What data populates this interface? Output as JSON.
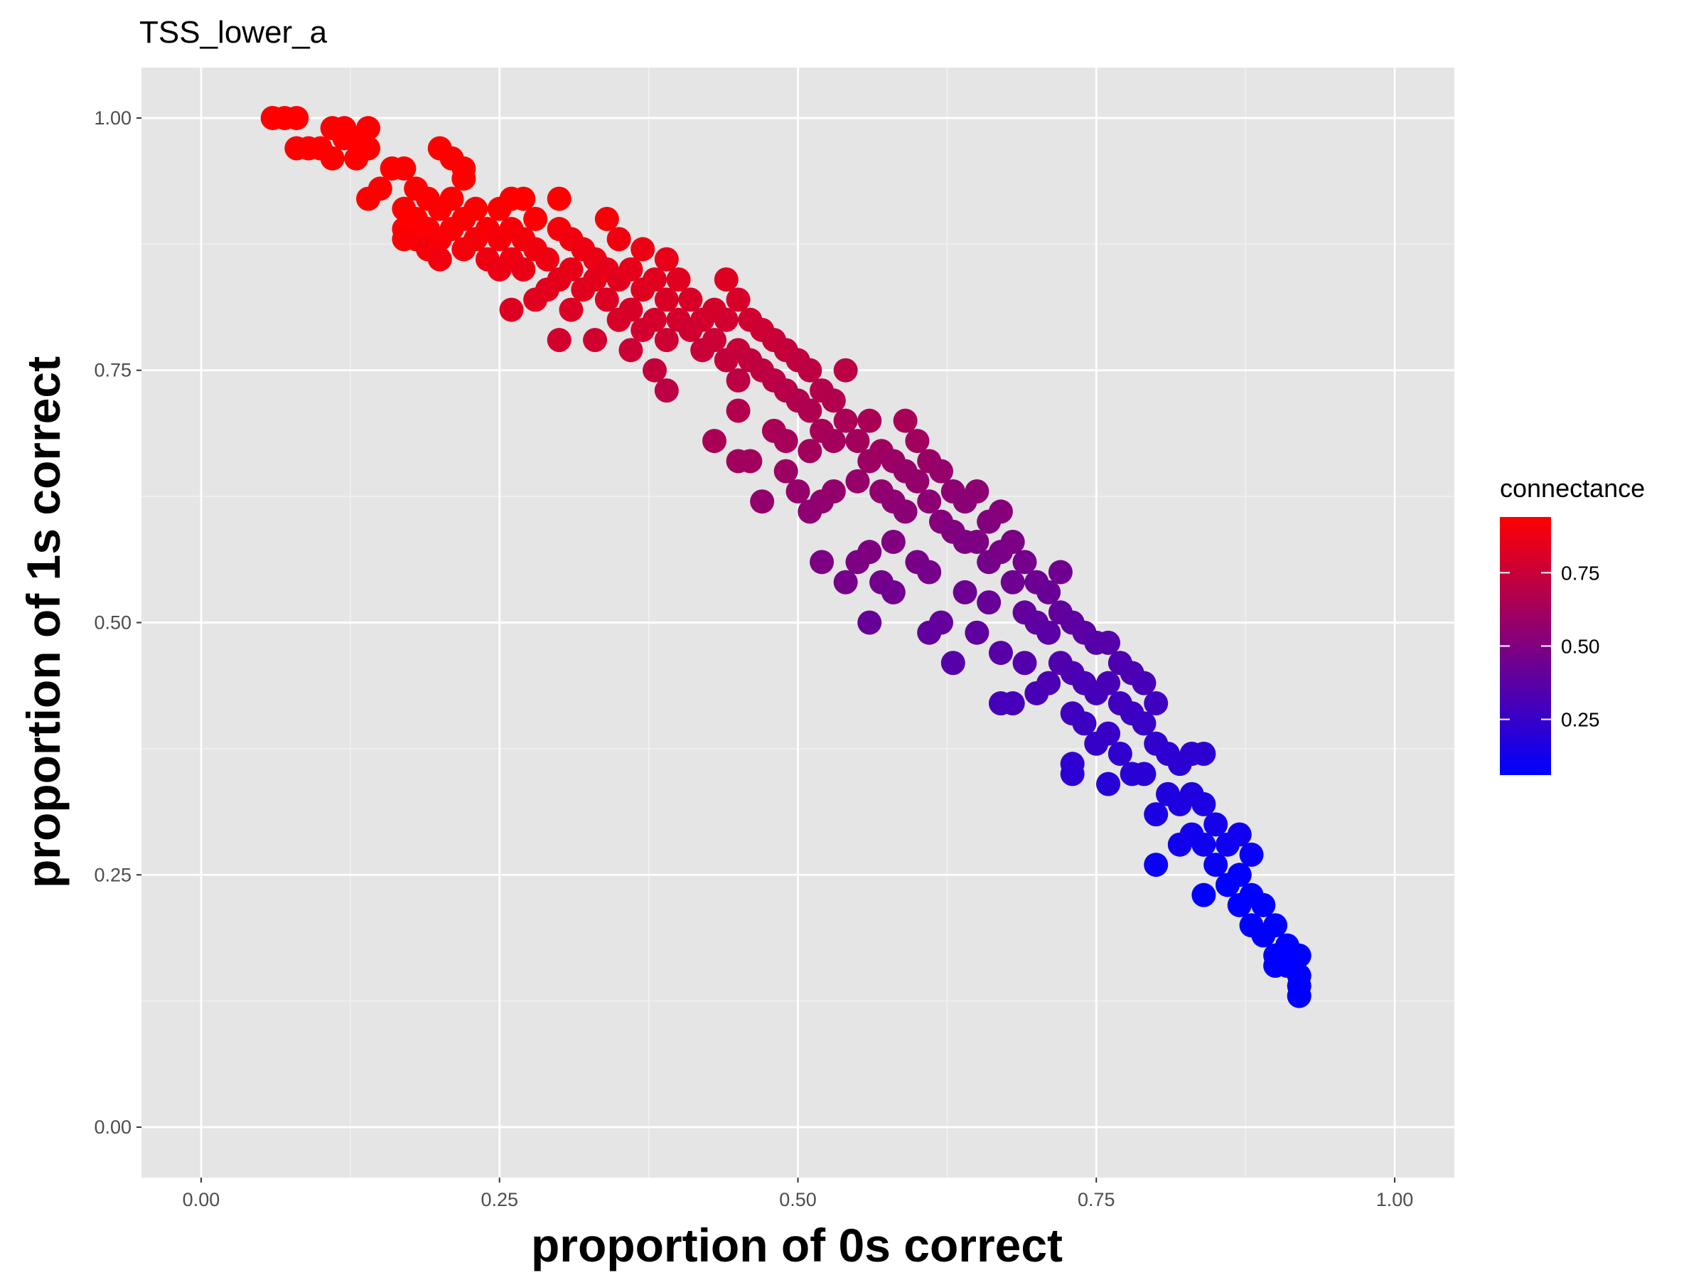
{
  "chart_data": {
    "type": "scatter",
    "title": "TSS_lower_a",
    "xlabel": "proportion of 0s correct",
    "ylabel": "proportion of 1s correct",
    "xlim": [
      -0.05,
      1.05
    ],
    "ylim": [
      -0.05,
      1.05
    ],
    "x_ticks": [
      "0.00",
      "0.25",
      "0.50",
      "0.75",
      "1.00"
    ],
    "y_ticks": [
      "0.00",
      "0.25",
      "0.50",
      "0.75",
      "1.00"
    ],
    "grid": true,
    "background": "#e5e5e5",
    "legend": {
      "title": "connectance",
      "position": "right",
      "low_color": "#0000ff",
      "high_color": "#ff0000",
      "range": [
        0.06,
        0.94
      ],
      "breaks": [
        "0.25",
        "0.50",
        "0.75"
      ]
    },
    "series": [
      {
        "points": [
          [
            0.06,
            1.0
          ],
          [
            0.07,
            1.0
          ],
          [
            0.08,
            1.0
          ],
          [
            0.08,
            0.97
          ],
          [
            0.09,
            0.97
          ],
          [
            0.1,
            0.97
          ],
          [
            0.11,
            0.99
          ],
          [
            0.11,
            0.96
          ],
          [
            0.12,
            0.99
          ],
          [
            0.12,
            0.98
          ],
          [
            0.13,
            0.98
          ],
          [
            0.13,
            0.96
          ],
          [
            0.14,
            0.99
          ],
          [
            0.14,
            0.97
          ],
          [
            0.14,
            0.92
          ],
          [
            0.15,
            0.93
          ],
          [
            0.16,
            0.95
          ],
          [
            0.17,
            0.95
          ],
          [
            0.17,
            0.91
          ],
          [
            0.17,
            0.89
          ],
          [
            0.17,
            0.88
          ],
          [
            0.18,
            0.93
          ],
          [
            0.18,
            0.9
          ],
          [
            0.18,
            0.88
          ],
          [
            0.19,
            0.92
          ],
          [
            0.19,
            0.89
          ],
          [
            0.19,
            0.87
          ],
          [
            0.2,
            0.97
          ],
          [
            0.2,
            0.91
          ],
          [
            0.2,
            0.88
          ],
          [
            0.2,
            0.86
          ],
          [
            0.21,
            0.96
          ],
          [
            0.21,
            0.92
          ],
          [
            0.21,
            0.89
          ],
          [
            0.22,
            0.95
          ],
          [
            0.22,
            0.94
          ],
          [
            0.22,
            0.9
          ],
          [
            0.22,
            0.87
          ],
          [
            0.23,
            0.91
          ],
          [
            0.23,
            0.88
          ],
          [
            0.24,
            0.89
          ],
          [
            0.24,
            0.86
          ],
          [
            0.25,
            0.91
          ],
          [
            0.25,
            0.88
          ],
          [
            0.25,
            0.85
          ],
          [
            0.26,
            0.92
          ],
          [
            0.26,
            0.89
          ],
          [
            0.26,
            0.86
          ],
          [
            0.26,
            0.81
          ],
          [
            0.27,
            0.92
          ],
          [
            0.27,
            0.88
          ],
          [
            0.27,
            0.85
          ],
          [
            0.28,
            0.9
          ],
          [
            0.28,
            0.87
          ],
          [
            0.28,
            0.82
          ],
          [
            0.29,
            0.86
          ],
          [
            0.29,
            0.83
          ],
          [
            0.3,
            0.92
          ],
          [
            0.3,
            0.89
          ],
          [
            0.3,
            0.84
          ],
          [
            0.3,
            0.78
          ],
          [
            0.31,
            0.88
          ],
          [
            0.31,
            0.85
          ],
          [
            0.31,
            0.81
          ],
          [
            0.32,
            0.87
          ],
          [
            0.32,
            0.83
          ],
          [
            0.33,
            0.86
          ],
          [
            0.33,
            0.84
          ],
          [
            0.33,
            0.78
          ],
          [
            0.34,
            0.9
          ],
          [
            0.34,
            0.85
          ],
          [
            0.34,
            0.82
          ],
          [
            0.35,
            0.88
          ],
          [
            0.35,
            0.84
          ],
          [
            0.35,
            0.8
          ],
          [
            0.36,
            0.85
          ],
          [
            0.36,
            0.81
          ],
          [
            0.36,
            0.77
          ],
          [
            0.37,
            0.87
          ],
          [
            0.37,
            0.83
          ],
          [
            0.37,
            0.79
          ],
          [
            0.38,
            0.84
          ],
          [
            0.38,
            0.8
          ],
          [
            0.38,
            0.75
          ],
          [
            0.39,
            0.86
          ],
          [
            0.39,
            0.82
          ],
          [
            0.39,
            0.78
          ],
          [
            0.39,
            0.73
          ],
          [
            0.4,
            0.84
          ],
          [
            0.4,
            0.8
          ],
          [
            0.41,
            0.82
          ],
          [
            0.41,
            0.79
          ],
          [
            0.42,
            0.8
          ],
          [
            0.42,
            0.77
          ],
          [
            0.43,
            0.81
          ],
          [
            0.43,
            0.78
          ],
          [
            0.43,
            0.68
          ],
          [
            0.44,
            0.84
          ],
          [
            0.44,
            0.8
          ],
          [
            0.44,
            0.76
          ],
          [
            0.45,
            0.82
          ],
          [
            0.45,
            0.77
          ],
          [
            0.45,
            0.74
          ],
          [
            0.45,
            0.71
          ],
          [
            0.45,
            0.66
          ],
          [
            0.46,
            0.8
          ],
          [
            0.46,
            0.76
          ],
          [
            0.46,
            0.66
          ],
          [
            0.47,
            0.79
          ],
          [
            0.47,
            0.75
          ],
          [
            0.47,
            0.62
          ],
          [
            0.48,
            0.78
          ],
          [
            0.48,
            0.74
          ],
          [
            0.48,
            0.69
          ],
          [
            0.49,
            0.77
          ],
          [
            0.49,
            0.73
          ],
          [
            0.49,
            0.68
          ],
          [
            0.49,
            0.65
          ],
          [
            0.5,
            0.76
          ],
          [
            0.5,
            0.72
          ],
          [
            0.5,
            0.63
          ],
          [
            0.51,
            0.75
          ],
          [
            0.51,
            0.71
          ],
          [
            0.51,
            0.67
          ],
          [
            0.51,
            0.61
          ],
          [
            0.52,
            0.73
          ],
          [
            0.52,
            0.69
          ],
          [
            0.52,
            0.62
          ],
          [
            0.52,
            0.56
          ],
          [
            0.53,
            0.72
          ],
          [
            0.53,
            0.68
          ],
          [
            0.53,
            0.63
          ],
          [
            0.54,
            0.75
          ],
          [
            0.54,
            0.7
          ],
          [
            0.54,
            0.54
          ],
          [
            0.55,
            0.68
          ],
          [
            0.55,
            0.64
          ],
          [
            0.55,
            0.56
          ],
          [
            0.56,
            0.7
          ],
          [
            0.56,
            0.66
          ],
          [
            0.56,
            0.57
          ],
          [
            0.56,
            0.5
          ],
          [
            0.57,
            0.67
          ],
          [
            0.57,
            0.63
          ],
          [
            0.57,
            0.54
          ],
          [
            0.58,
            0.66
          ],
          [
            0.58,
            0.62
          ],
          [
            0.58,
            0.58
          ],
          [
            0.58,
            0.53
          ],
          [
            0.59,
            0.7
          ],
          [
            0.59,
            0.65
          ],
          [
            0.59,
            0.61
          ],
          [
            0.6,
            0.68
          ],
          [
            0.6,
            0.64
          ],
          [
            0.6,
            0.56
          ],
          [
            0.61,
            0.66
          ],
          [
            0.61,
            0.62
          ],
          [
            0.61,
            0.55
          ],
          [
            0.61,
            0.49
          ],
          [
            0.62,
            0.65
          ],
          [
            0.62,
            0.6
          ],
          [
            0.62,
            0.5
          ],
          [
            0.63,
            0.63
          ],
          [
            0.63,
            0.59
          ],
          [
            0.63,
            0.46
          ],
          [
            0.64,
            0.62
          ],
          [
            0.64,
            0.58
          ],
          [
            0.64,
            0.53
          ],
          [
            0.65,
            0.63
          ],
          [
            0.65,
            0.58
          ],
          [
            0.65,
            0.49
          ],
          [
            0.66,
            0.6
          ],
          [
            0.66,
            0.56
          ],
          [
            0.66,
            0.52
          ],
          [
            0.67,
            0.61
          ],
          [
            0.67,
            0.57
          ],
          [
            0.67,
            0.47
          ],
          [
            0.67,
            0.42
          ],
          [
            0.68,
            0.58
          ],
          [
            0.68,
            0.54
          ],
          [
            0.68,
            0.42
          ],
          [
            0.69,
            0.56
          ],
          [
            0.69,
            0.51
          ],
          [
            0.69,
            0.46
          ],
          [
            0.7,
            0.54
          ],
          [
            0.7,
            0.5
          ],
          [
            0.7,
            0.43
          ],
          [
            0.71,
            0.53
          ],
          [
            0.71,
            0.49
          ],
          [
            0.71,
            0.44
          ],
          [
            0.72,
            0.55
          ],
          [
            0.72,
            0.51
          ],
          [
            0.72,
            0.46
          ],
          [
            0.73,
            0.5
          ],
          [
            0.73,
            0.45
          ],
          [
            0.73,
            0.41
          ],
          [
            0.73,
            0.36
          ],
          [
            0.73,
            0.35
          ],
          [
            0.74,
            0.49
          ],
          [
            0.74,
            0.44
          ],
          [
            0.74,
            0.4
          ],
          [
            0.75,
            0.48
          ],
          [
            0.75,
            0.43
          ],
          [
            0.75,
            0.38
          ],
          [
            0.76,
            0.48
          ],
          [
            0.76,
            0.44
          ],
          [
            0.76,
            0.39
          ],
          [
            0.76,
            0.34
          ],
          [
            0.77,
            0.46
          ],
          [
            0.77,
            0.42
          ],
          [
            0.77,
            0.37
          ],
          [
            0.78,
            0.45
          ],
          [
            0.78,
            0.41
          ],
          [
            0.78,
            0.35
          ],
          [
            0.79,
            0.44
          ],
          [
            0.79,
            0.4
          ],
          [
            0.79,
            0.35
          ],
          [
            0.8,
            0.42
          ],
          [
            0.8,
            0.38
          ],
          [
            0.8,
            0.31
          ],
          [
            0.8,
            0.26
          ],
          [
            0.81,
            0.37
          ],
          [
            0.81,
            0.33
          ],
          [
            0.82,
            0.36
          ],
          [
            0.82,
            0.32
          ],
          [
            0.82,
            0.28
          ],
          [
            0.83,
            0.37
          ],
          [
            0.83,
            0.33
          ],
          [
            0.83,
            0.29
          ],
          [
            0.84,
            0.37
          ],
          [
            0.84,
            0.32
          ],
          [
            0.84,
            0.28
          ],
          [
            0.84,
            0.23
          ],
          [
            0.85,
            0.3
          ],
          [
            0.85,
            0.26
          ],
          [
            0.86,
            0.28
          ],
          [
            0.86,
            0.24
          ],
          [
            0.87,
            0.29
          ],
          [
            0.87,
            0.25
          ],
          [
            0.87,
            0.22
          ],
          [
            0.88,
            0.27
          ],
          [
            0.88,
            0.23
          ],
          [
            0.88,
            0.2
          ],
          [
            0.89,
            0.22
          ],
          [
            0.89,
            0.19
          ],
          [
            0.9,
            0.2
          ],
          [
            0.9,
            0.17
          ],
          [
            0.9,
            0.16
          ],
          [
            0.91,
            0.18
          ],
          [
            0.91,
            0.16
          ],
          [
            0.92,
            0.17
          ],
          [
            0.92,
            0.15
          ],
          [
            0.92,
            0.14
          ],
          [
            0.92,
            0.13
          ]
        ]
      }
    ]
  }
}
